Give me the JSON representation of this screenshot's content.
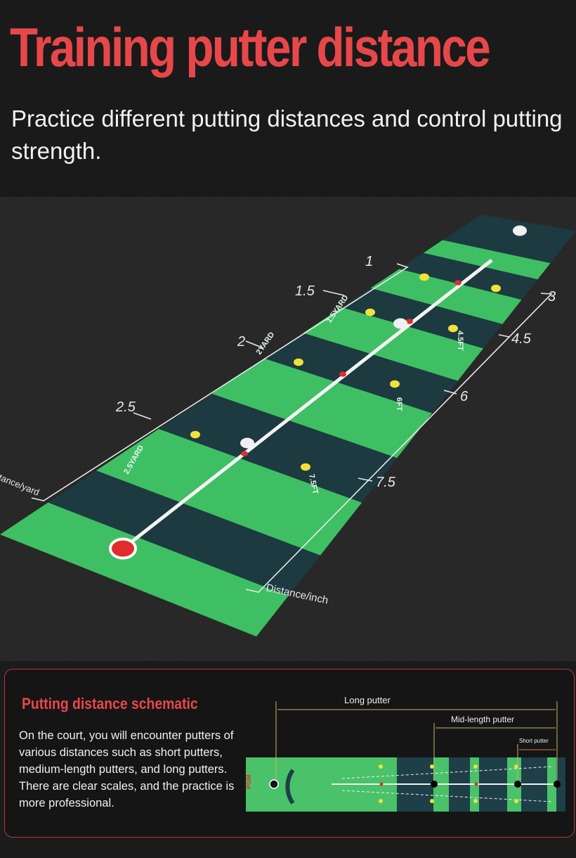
{
  "header": {
    "title": "Training putter distance",
    "subtitle": "Practice different putting distances and control putting strength."
  },
  "scene": {
    "yard_scale": {
      "label": "Distance/yard",
      "ticks": [
        "1",
        "1.5",
        "2",
        "2.5"
      ]
    },
    "inch_scale": {
      "label": "Distance/inch",
      "ticks": [
        "3",
        "4.5",
        "6",
        "7.5"
      ]
    },
    "mat_markings": [
      "2YARD",
      "6FT",
      "1.5YARD",
      "4.5FT",
      "2.5YARD",
      "7.5FT"
    ],
    "colors": {
      "mat_light": "#3fbf63",
      "mat_dark": "#1c3a40",
      "target_red": "#e22b2b",
      "marker_yellow": "#f2e13a"
    }
  },
  "panel": {
    "title": "Putting distance schematic",
    "text": "On the court, you will encounter putters of various distances such as short putters, medium-length putters, and long putters. There are clear scales, and the practice is more professional.",
    "schematic": {
      "long": "Long putter",
      "mid": "Mid-length putter",
      "short": "Short putter",
      "brand": "PGM"
    }
  }
}
